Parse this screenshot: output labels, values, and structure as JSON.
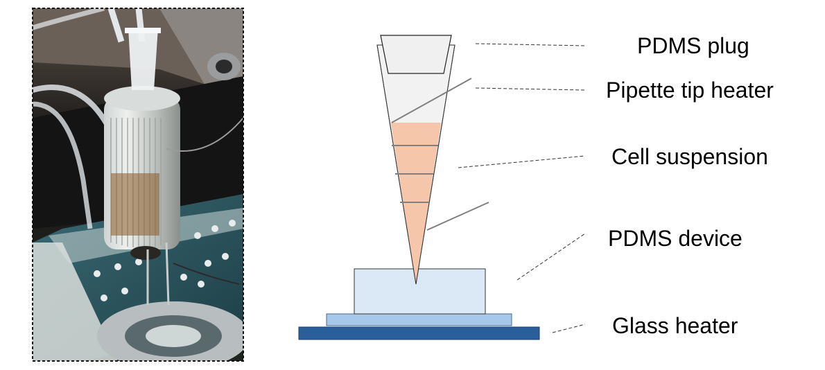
{
  "photo": {
    "description_icon": "photo-of-bioprinter-setup"
  },
  "labels": {
    "pdms_plug": "PDMS plug",
    "pipette_tip_heater": "Pipette tip heater",
    "cell_suspension": "Cell suspension",
    "pdms_device": "PDMS device",
    "glass_heater": "Glass heater"
  },
  "colors": {
    "cell_suspension": "#f6c6ab",
    "pdms_device": "#dbe8f5",
    "glass_heater_top": "#a8c8ea",
    "glass_heater_bottom": "#2a5f9b",
    "pipette_tip": "#f2f2f2",
    "heater_wire": "#7f7f7f"
  }
}
